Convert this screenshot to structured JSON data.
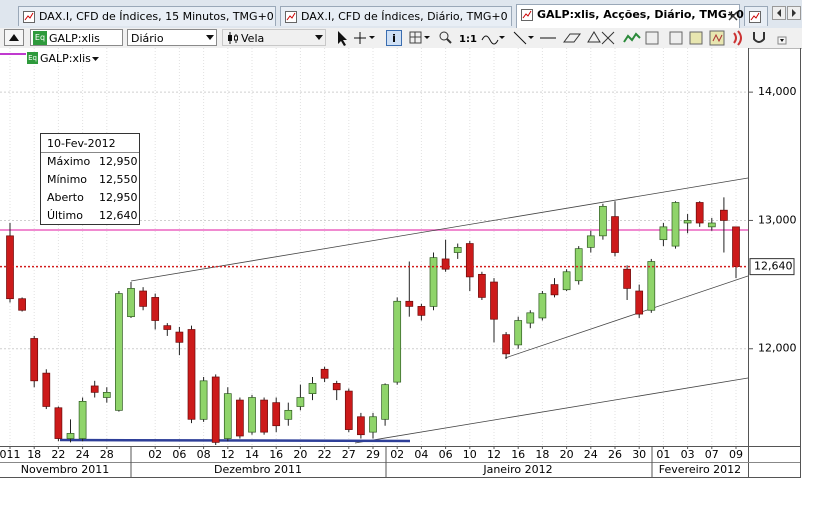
{
  "tabs": [
    {
      "label": "DAX.I, CFD de Índices, 15 Minutos, TMG+0"
    },
    {
      "label": "DAX.I, CFD de Índices, Diário, TMG+0"
    },
    {
      "label": "GALP:xlis, Acções, Diário, TMG+0"
    }
  ],
  "toolbar": {
    "symbol_icon": "Eq",
    "symbol": "GALP:xlis",
    "period": "Diário",
    "chart_style": "Vela",
    "zoom": "1:1"
  },
  "chart_label": {
    "icon": "Eq",
    "symbol": "GALP:xlis"
  },
  "info_box": {
    "date": "10-Fev-2012",
    "rows": [
      {
        "name": "Máximo",
        "value": "12,950"
      },
      {
        "name": "Mínimo",
        "value": "12,550"
      },
      {
        "name": "Aberto",
        "value": "12,950"
      },
      {
        "name": "Último",
        "value": "12,640"
      }
    ]
  },
  "chart_data": {
    "type": "candlestick",
    "categories": [
      "011",
      null,
      "18",
      null,
      "22",
      null,
      "24",
      null,
      "28",
      null,
      null,
      null,
      "02",
      null,
      "06",
      null,
      "08",
      null,
      "12",
      null,
      "14",
      null,
      "16",
      null,
      "20",
      null,
      "22",
      null,
      "27",
      null,
      "29",
      null,
      "02",
      null,
      "04",
      null,
      "06",
      null,
      "10",
      null,
      "12",
      null,
      "16",
      null,
      "18",
      null,
      "20",
      null,
      "24",
      null,
      "26",
      null,
      "30",
      null,
      "01",
      null,
      "03",
      null,
      "07",
      null,
      "09"
    ],
    "months": [
      "Novembro 2011",
      "Dezembro 2011",
      "Janeiro 2012",
      "Fevereiro 2012"
    ],
    "open": [
      12.88,
      12.39,
      12.08,
      11.81,
      11.54,
      11.3,
      11.3,
      11.71,
      11.62,
      11.52,
      12.25,
      12.45,
      12.4,
      12.18,
      12.13,
      12.15,
      11.45,
      11.78,
      11.3,
      11.6,
      11.35,
      11.6,
      11.58,
      11.45,
      11.55,
      11.65,
      11.84,
      11.73,
      11.67,
      11.47,
      11.35,
      11.45,
      11.74,
      12.37,
      12.33,
      12.33,
      12.7,
      12.75,
      12.82,
      12.58,
      12.52,
      12.11,
      12.03,
      12.2,
      12.24,
      12.5,
      12.46,
      12.53,
      12.79,
      12.88,
      13.03,
      12.62,
      12.45,
      12.3,
      12.85,
      12.8,
      12.98,
      13.14,
      12.95,
      13.08,
      12.95
    ],
    "high": [
      12.98,
      12.4,
      12.1,
      11.84,
      11.55,
      11.45,
      11.62,
      11.75,
      11.7,
      12.45,
      12.52,
      12.48,
      12.43,
      12.2,
      12.17,
      12.18,
      11.78,
      11.8,
      11.7,
      11.62,
      11.64,
      11.62,
      11.62,
      11.58,
      11.72,
      11.78,
      11.86,
      11.75,
      11.69,
      11.5,
      11.5,
      11.73,
      12.4,
      12.68,
      12.35,
      12.75,
      12.85,
      12.82,
      12.84,
      12.6,
      12.55,
      12.13,
      12.25,
      12.3,
      12.45,
      12.55,
      12.62,
      12.8,
      12.92,
      13.13,
      13.15,
      12.65,
      12.5,
      12.7,
      12.98,
      13.15,
      13.05,
      13.15,
      13.02,
      13.18,
      12.95
    ],
    "low": [
      12.36,
      12.29,
      11.7,
      11.53,
      11.28,
      11.27,
      11.28,
      11.62,
      11.58,
      11.51,
      12.24,
      12.3,
      12.15,
      12.1,
      11.95,
      11.42,
      11.43,
      11.25,
      11.28,
      11.3,
      11.33,
      11.33,
      11.35,
      11.4,
      11.52,
      11.6,
      11.74,
      11.6,
      11.35,
      11.3,
      11.3,
      11.4,
      11.72,
      12.25,
      12.22,
      12.3,
      12.6,
      12.7,
      12.45,
      12.38,
      12.05,
      11.92,
      12.0,
      12.16,
      12.22,
      12.4,
      12.45,
      12.5,
      12.75,
      12.85,
      12.72,
      12.38,
      12.24,
      12.28,
      12.8,
      12.78,
      12.9,
      12.95,
      12.92,
      12.75,
      12.55
    ],
    "close": [
      12.39,
      12.3,
      11.75,
      11.55,
      11.3,
      11.34,
      11.59,
      11.66,
      11.66,
      12.43,
      12.47,
      12.33,
      12.22,
      12.15,
      12.05,
      11.45,
      11.75,
      11.27,
      11.65,
      11.32,
      11.62,
      11.35,
      11.4,
      11.52,
      11.62,
      11.73,
      11.77,
      11.68,
      11.37,
      11.33,
      11.47,
      11.72,
      12.37,
      12.33,
      12.26,
      12.71,
      12.62,
      12.79,
      12.56,
      12.4,
      12.23,
      11.96,
      12.22,
      12.28,
      12.43,
      12.42,
      12.6,
      12.78,
      12.88,
      13.11,
      12.75,
      12.47,
      12.27,
      12.68,
      12.95,
      13.14,
      13.0,
      12.98,
      12.98,
      13.0,
      12.64
    ],
    "up_color": "#8fd46a",
    "down_color": "#cc1a1a",
    "ylim": [
      11.242,
      14.344
    ],
    "yticks": [
      {
        "value": 12,
        "label": "12,000"
      },
      {
        "value": 13,
        "label": "13,000"
      },
      {
        "value": 14,
        "label": "14,000"
      }
    ],
    "last_price": {
      "value": 12.64,
      "label": "12,640"
    },
    "grid": true
  }
}
